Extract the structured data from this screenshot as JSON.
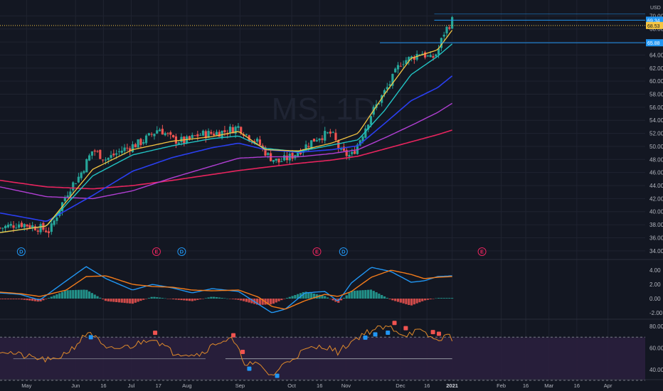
{
  "chart_data": {
    "type": "candlestick",
    "title": "",
    "watermark": "MS, 1D",
    "currency": "USD",
    "colors": {
      "background": "#131722",
      "grid": "#1f2330",
      "candle_up": "#26a69a",
      "candle_down": "#ef5350",
      "ema_fast": "#f5c542",
      "ema_mid": "#22c4c4",
      "ema_slow": "#2a3ff0",
      "sma_mid": "#b23fd4",
      "sma_long": "#e8245e",
      "macd": "#2196f3",
      "signal": "#f57c1a",
      "hist_up": "#26a69a",
      "hist_down": "#ef5350",
      "rsi": "#e08a2a",
      "rsi_band": "#2a1f3d",
      "price_line": "#f5c542",
      "level_line": "#2196f3"
    },
    "price_axis": {
      "min": 33,
      "max": 70.8,
      "ticks": [
        "34.00",
        "36.00",
        "38.00",
        "40.00",
        "42.00",
        "44.00",
        "46.00",
        "48.00",
        "50.00",
        "52.00",
        "54.00",
        "56.00",
        "58.00",
        "60.00",
        "62.00",
        "64.00",
        "66.00",
        "68.00",
        "70.00"
      ]
    },
    "price_labels": [
      {
        "text": "69.34",
        "value": 69.34,
        "style": "blue"
      },
      {
        "text": "68.53",
        "value": 68.53,
        "style": "yellow"
      },
      {
        "text": "65.88",
        "value": 65.88,
        "style": "blue"
      }
    ],
    "time_axis": {
      "labels": [
        "May",
        "Jun",
        "16",
        "Jul",
        "17",
        "Aug",
        "Sep",
        "Oct",
        "16",
        "Nov",
        "Dec",
        "16",
        "2021",
        "Feb",
        "16",
        "Mar",
        "16",
        "Apr"
      ],
      "positions": [
        0.04,
        0.114,
        0.156,
        0.198,
        0.239,
        0.282,
        0.362,
        0.44,
        0.482,
        0.522,
        0.604,
        0.644,
        0.682,
        0.756,
        0.793,
        0.828,
        0.87,
        0.917
      ]
    },
    "events": [
      {
        "label": "D",
        "t": 0.032,
        "type": "dividend"
      },
      {
        "label": "E",
        "t": 0.236,
        "type": "earnings"
      },
      {
        "label": "D",
        "t": 0.274,
        "type": "dividend"
      },
      {
        "label": "E",
        "t": 0.478,
        "type": "earnings"
      },
      {
        "label": "D",
        "t": 0.518,
        "type": "dividend"
      },
      {
        "label": "E",
        "t": 0.727,
        "type": "earnings"
      }
    ],
    "price_keys": {
      "t": [
        0.0,
        0.03,
        0.06,
        0.075,
        0.09,
        0.105,
        0.12,
        0.14,
        0.16,
        0.185,
        0.21,
        0.225,
        0.24,
        0.26,
        0.28,
        0.3,
        0.32,
        0.34,
        0.36,
        0.375,
        0.39,
        0.405,
        0.42,
        0.44,
        0.46,
        0.48,
        0.5,
        0.515,
        0.53,
        0.545,
        0.56,
        0.575,
        0.59,
        0.605,
        0.62,
        0.635,
        0.65,
        0.66,
        0.67,
        0.682
      ],
      "close": [
        37.5,
        38.2,
        37.5,
        37.0,
        40.5,
        43.6,
        45.5,
        49.5,
        48.0,
        49.5,
        50.5,
        51.5,
        52.8,
        51.0,
        50.8,
        51.8,
        52.0,
        52.3,
        53.0,
        51.5,
        50.5,
        48.5,
        47.6,
        48.5,
        50.0,
        51.5,
        52.0,
        49.0,
        48.5,
        51.5,
        55.0,
        57.5,
        60.0,
        63.0,
        63.5,
        64.5,
        63.3,
        64.5,
        67.5,
        69.3
      ]
    },
    "ma_keys": {
      "t": [
        0.0,
        0.07,
        0.14,
        0.2,
        0.26,
        0.32,
        0.36,
        0.4,
        0.45,
        0.5,
        0.54,
        0.58,
        0.62,
        0.66,
        0.682
      ],
      "ema_fast": [
        36.8,
        37.8,
        46.5,
        49.5,
        50.8,
        51.5,
        52.3,
        49.5,
        49.3,
        50.5,
        52.0,
        58.0,
        63.5,
        64.8,
        67.8
      ],
      "ema_mid": [
        36.8,
        37.8,
        45.5,
        48.7,
        50.1,
        51.2,
        51.6,
        49.7,
        49.2,
        50.2,
        51.0,
        55.5,
        61.0,
        63.8,
        65.7
      ],
      "ema_slow": [
        39.8,
        38.5,
        42.5,
        46.2,
        48.3,
        49.8,
        50.5,
        49.5,
        49.1,
        49.5,
        50.1,
        53.5,
        57.0,
        59.0,
        60.8
      ],
      "sma_mid": [
        43.8,
        42.3,
        42.0,
        43.2,
        45.2,
        47.0,
        48.2,
        48.4,
        48.4,
        48.9,
        49.5,
        51.3,
        53.2,
        55.2,
        56.6
      ],
      "sma_long": [
        44.8,
        43.8,
        43.5,
        44.0,
        44.8,
        45.7,
        46.3,
        46.8,
        47.4,
        47.9,
        48.5,
        49.6,
        50.7,
        51.8,
        52.5
      ]
    },
    "macd_axis": {
      "min": -2.8,
      "max": 5.2,
      "ticks": [
        "4.00",
        "2.00",
        "0.00",
        "-2.00"
      ]
    },
    "macd_keys": {
      "t": [
        0.0,
        0.03,
        0.06,
        0.1,
        0.13,
        0.16,
        0.2,
        0.23,
        0.26,
        0.29,
        0.32,
        0.36,
        0.39,
        0.41,
        0.43,
        0.46,
        0.49,
        0.51,
        0.53,
        0.56,
        0.59,
        0.62,
        0.64,
        0.66,
        0.682
      ],
      "macd": [
        0.8,
        0.6,
        -0.2,
        2.5,
        4.5,
        2.8,
        1.2,
        2.0,
        1.5,
        0.8,
        1.4,
        1.0,
        -0.8,
        -2.0,
        -1.5,
        0.8,
        1.0,
        -0.4,
        2.2,
        4.4,
        3.8,
        2.3,
        2.5,
        3.1,
        3.2
      ],
      "signal": [
        0.9,
        0.7,
        0.3,
        1.2,
        3.1,
        3.2,
        2.0,
        1.7,
        1.6,
        1.2,
        1.1,
        1.2,
        0.2,
        -1.1,
        -1.5,
        -0.3,
        0.6,
        0.3,
        1.0,
        3.0,
        4.0,
        3.4,
        2.8,
        3.0,
        3.1
      ]
    },
    "rsi_axis": {
      "min": 32,
      "max": 86,
      "ticks": [
        "80.00",
        "60.00",
        "40.00"
      ]
    },
    "rsi_levels": {
      "upper": 70,
      "mid": 50,
      "lower": 30
    },
    "rsi_keys": {
      "t": [
        0.0,
        0.04,
        0.08,
        0.11,
        0.135,
        0.16,
        0.2,
        0.23,
        0.26,
        0.3,
        0.33,
        0.35,
        0.37,
        0.39,
        0.41,
        0.43,
        0.46,
        0.49,
        0.51,
        0.53,
        0.55,
        0.57,
        0.59,
        0.61,
        0.63,
        0.65,
        0.66,
        0.67,
        0.682
      ],
      "rsi": [
        58,
        52,
        48,
        60,
        76,
        58,
        62,
        70,
        56,
        54,
        66,
        68,
        46,
        44,
        34,
        46,
        58,
        62,
        56,
        66,
        74,
        78,
        79,
        72,
        76,
        70,
        66,
        72,
        69
      ]
    },
    "rsi_markers": [
      {
        "t": 0.137,
        "type": "up"
      },
      {
        "t": 0.234,
        "type": "down"
      },
      {
        "t": 0.352,
        "type": "down"
      },
      {
        "t": 0.366,
        "type": "down"
      },
      {
        "t": 0.376,
        "type": "up"
      },
      {
        "t": 0.418,
        "type": "up"
      },
      {
        "t": 0.551,
        "type": "up"
      },
      {
        "t": 0.566,
        "type": "up"
      },
      {
        "t": 0.585,
        "type": "up"
      },
      {
        "t": 0.595,
        "type": "down"
      },
      {
        "t": 0.612,
        "type": "down"
      },
      {
        "t": 0.653,
        "type": "down"
      },
      {
        "t": 0.662,
        "type": "down"
      }
    ]
  }
}
